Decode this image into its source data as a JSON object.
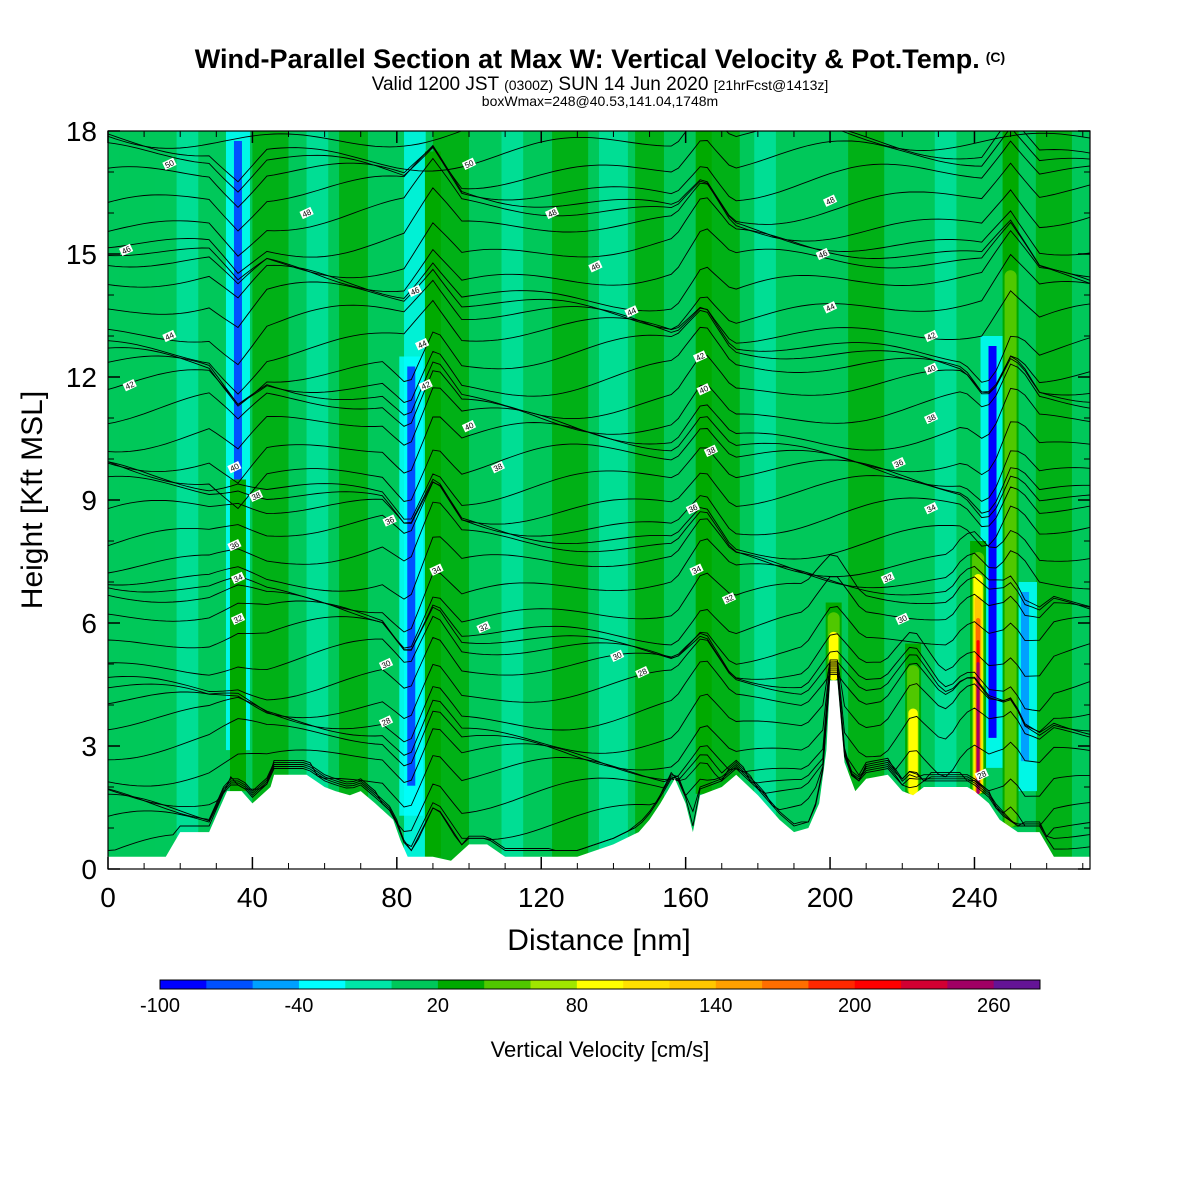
{
  "title": {
    "main": "Wind-Parallel Section at Max W: Vertical Velocity & Pot.Temp.",
    "copyright": "(C)",
    "valid_prefix": "Valid 1200 JST",
    "valid_utc": "(0300Z)",
    "valid_date": "SUN 14 Jun 2020",
    "forecast": "[21hrFcst@1413z]",
    "boxwmax": "boxWmax=248@40.53,141.04,1748m"
  },
  "colors": {
    "background_green": "#00c85a",
    "terrain": "#ffffff"
  },
  "chart_data": {
    "type": "heatmap",
    "xlabel": "Distance [nm]",
    "ylabel": "Height [Kft MSL]",
    "xlim": [
      0,
      272
    ],
    "ylim": [
      0,
      18
    ],
    "xticks": [
      0,
      40,
      80,
      120,
      160,
      200,
      240
    ],
    "yticks": [
      0,
      3,
      6,
      9,
      12,
      15,
      18
    ],
    "colorbar": {
      "label": "Vertical Velocity [cm/s]",
      "bounds": [
        -100,
        -80,
        -60,
        -40,
        -20,
        0,
        20,
        40,
        60,
        80,
        100,
        120,
        140,
        160,
        180,
        200,
        220,
        240,
        260,
        280
      ],
      "colors": [
        "#0000ff",
        "#0050ff",
        "#00a0ff",
        "#00ffff",
        "#00e6a8",
        "#00c85a",
        "#00aa00",
        "#50c800",
        "#a0e600",
        "#ffff00",
        "#ffe100",
        "#ffc800",
        "#ffa000",
        "#ff6e00",
        "#ff2800",
        "#ff0000",
        "#d20032",
        "#a00064",
        "#641496"
      ],
      "tick_labels": [
        "-100",
        "-40",
        "20",
        "80",
        "140",
        "200",
        "260"
      ]
    },
    "terrain_profile_kft": [
      [
        0,
        0.3
      ],
      [
        16,
        0.3
      ],
      [
        18,
        0.6
      ],
      [
        20,
        0.9
      ],
      [
        28,
        0.9
      ],
      [
        31,
        1.5
      ],
      [
        33,
        1.9
      ],
      [
        37,
        1.9
      ],
      [
        40,
        1.6
      ],
      [
        45,
        2.0
      ],
      [
        46,
        2.3
      ],
      [
        55,
        2.3
      ],
      [
        60,
        2.0
      ],
      [
        63,
        1.9
      ],
      [
        67,
        1.8
      ],
      [
        70,
        1.9
      ],
      [
        74,
        1.6
      ],
      [
        79,
        1.2
      ],
      [
        81,
        0.7
      ],
      [
        83,
        0.3
      ],
      [
        90,
        0.3
      ],
      [
        95,
        0.2
      ],
      [
        100,
        0.6
      ],
      [
        105,
        0.6
      ],
      [
        110,
        0.3
      ],
      [
        130,
        0.3
      ],
      [
        140,
        0.6
      ],
      [
        147,
        0.9
      ],
      [
        150,
        1.2
      ],
      [
        153,
        1.6
      ],
      [
        157,
        2.2
      ],
      [
        160,
        1.6
      ],
      [
        162,
        0.9
      ],
      [
        164,
        1.8
      ],
      [
        170,
        2.0
      ],
      [
        174,
        2.3
      ],
      [
        180,
        1.8
      ],
      [
        186,
        1.2
      ],
      [
        190,
        0.9
      ],
      [
        194,
        1.0
      ],
      [
        197,
        1.6
      ],
      [
        199,
        2.9
      ],
      [
        200,
        4.6
      ],
      [
        202,
        4.6
      ],
      [
        204,
        2.6
      ],
      [
        207,
        1.9
      ],
      [
        210,
        2.2
      ],
      [
        216,
        2.3
      ],
      [
        220,
        1.9
      ],
      [
        223,
        1.8
      ],
      [
        226,
        2.0
      ],
      [
        232,
        2.0
      ],
      [
        238,
        2.0
      ],
      [
        240,
        1.9
      ],
      [
        244,
        1.6
      ],
      [
        247,
        1.2
      ],
      [
        252,
        0.9
      ],
      [
        258,
        0.9
      ],
      [
        262,
        0.3
      ],
      [
        272,
        0.3
      ]
    ],
    "updraft_cores": [
      {
        "x": 36,
        "z_top": 9.5,
        "w": 30
      },
      {
        "x": 90,
        "z_top": 17.5,
        "w": 30
      },
      {
        "x": 165,
        "z_top": 18.0,
        "w": 30
      },
      {
        "x": 201,
        "z_top": 6.5,
        "w": 100
      },
      {
        "x": 223,
        "z_top": 5.5,
        "w": 90
      },
      {
        "x": 241,
        "z_top": 8.0,
        "w": 250
      },
      {
        "x": 250,
        "z_top": 18.0,
        "w": 70
      }
    ],
    "downdraft_cores": [
      {
        "x": 36,
        "z_top": 18.0,
        "w": -80
      },
      {
        "x": 84,
        "z_top": 12.5,
        "w": -70
      },
      {
        "x": 245,
        "z_top": 13.0,
        "w": -90
      },
      {
        "x": 254,
        "z_top": 7.0,
        "w": -60
      }
    ],
    "theta_contour_labels": [
      {
        "x": 17,
        "z": 17.2,
        "label": "50"
      },
      {
        "x": 100,
        "z": 17.2,
        "label": "50"
      },
      {
        "x": 55,
        "z": 16.0,
        "label": "48"
      },
      {
        "x": 123,
        "z": 16.0,
        "label": "48"
      },
      {
        "x": 200,
        "z": 16.3,
        "label": "48"
      },
      {
        "x": 5,
        "z": 15.1,
        "label": "46"
      },
      {
        "x": 135,
        "z": 14.7,
        "label": "46"
      },
      {
        "x": 198,
        "z": 15.0,
        "label": "46"
      },
      {
        "x": 85,
        "z": 14.1,
        "label": "46"
      },
      {
        "x": 145,
        "z": 13.6,
        "label": "44"
      },
      {
        "x": 200,
        "z": 13.7,
        "label": "44"
      },
      {
        "x": 17,
        "z": 13.0,
        "label": "44"
      },
      {
        "x": 87,
        "z": 12.8,
        "label": "44"
      },
      {
        "x": 228,
        "z": 13.0,
        "label": "42"
      },
      {
        "x": 164,
        "z": 12.5,
        "label": "42"
      },
      {
        "x": 6,
        "z": 11.8,
        "label": "42"
      },
      {
        "x": 88,
        "z": 11.8,
        "label": "42"
      },
      {
        "x": 228,
        "z": 12.2,
        "label": "40"
      },
      {
        "x": 165,
        "z": 11.7,
        "label": "40"
      },
      {
        "x": 100,
        "z": 10.8,
        "label": "40"
      },
      {
        "x": 228,
        "z": 11.0,
        "label": "38"
      },
      {
        "x": 35,
        "z": 9.8,
        "label": "40"
      },
      {
        "x": 108,
        "z": 9.8,
        "label": "38"
      },
      {
        "x": 167,
        "z": 10.2,
        "label": "38"
      },
      {
        "x": 219,
        "z": 9.9,
        "label": "36"
      },
      {
        "x": 41,
        "z": 9.1,
        "label": "38"
      },
      {
        "x": 78,
        "z": 8.5,
        "label": "36"
      },
      {
        "x": 162,
        "z": 8.8,
        "label": "36"
      },
      {
        "x": 228,
        "z": 8.8,
        "label": "34"
      },
      {
        "x": 35,
        "z": 7.9,
        "label": "36"
      },
      {
        "x": 91,
        "z": 7.3,
        "label": "34"
      },
      {
        "x": 163,
        "z": 7.3,
        "label": "34"
      },
      {
        "x": 216,
        "z": 7.1,
        "label": "32"
      },
      {
        "x": 36,
        "z": 7.1,
        "label": "34"
      },
      {
        "x": 172,
        "z": 6.6,
        "label": "32"
      },
      {
        "x": 36,
        "z": 6.1,
        "label": "32"
      },
      {
        "x": 104,
        "z": 5.9,
        "label": "32"
      },
      {
        "x": 220,
        "z": 6.1,
        "label": "30"
      },
      {
        "x": 141,
        "z": 5.2,
        "label": "30"
      },
      {
        "x": 77,
        "z": 5.0,
        "label": "30"
      },
      {
        "x": 148,
        "z": 4.8,
        "label": "28"
      },
      {
        "x": 77,
        "z": 3.6,
        "label": "28"
      },
      {
        "x": 242,
        "z": 2.3,
        "label": "28"
      }
    ]
  }
}
